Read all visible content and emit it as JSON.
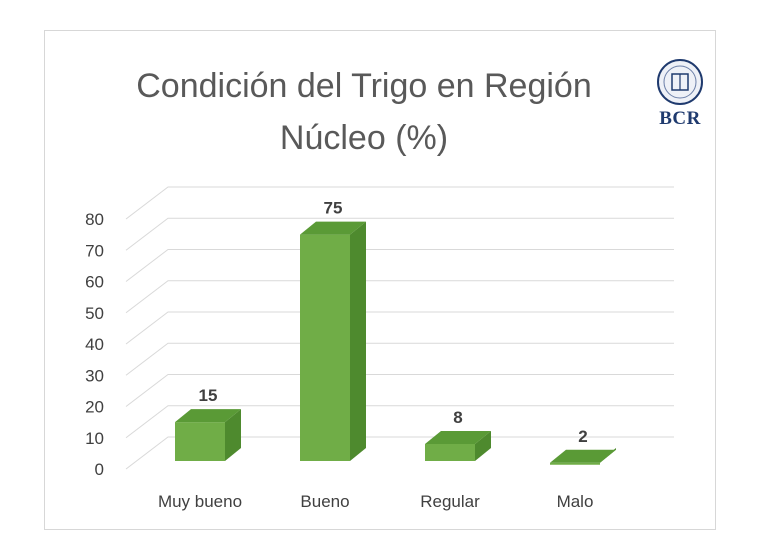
{
  "chart_data": {
    "type": "bar",
    "title": "Condición del Trigo en Región Núcleo (%)",
    "title_lines": [
      "Condición del Trigo en Región",
      "Núcleo (%)"
    ],
    "categories": [
      "Muy bueno",
      "Bueno",
      "Regular",
      "Malo"
    ],
    "values": [
      15,
      75,
      8,
      2
    ],
    "data_labels": [
      "15",
      "75",
      "8",
      "2"
    ],
    "yticks": [
      "0",
      "10",
      "20",
      "30",
      "40",
      "50",
      "60",
      "70",
      "80"
    ],
    "ylim": [
      0,
      80
    ],
    "grid": true,
    "style": "3d-column",
    "bar_color": "#70ad47"
  },
  "logo": {
    "text": "BCR",
    "color": "#1f3a6e"
  }
}
